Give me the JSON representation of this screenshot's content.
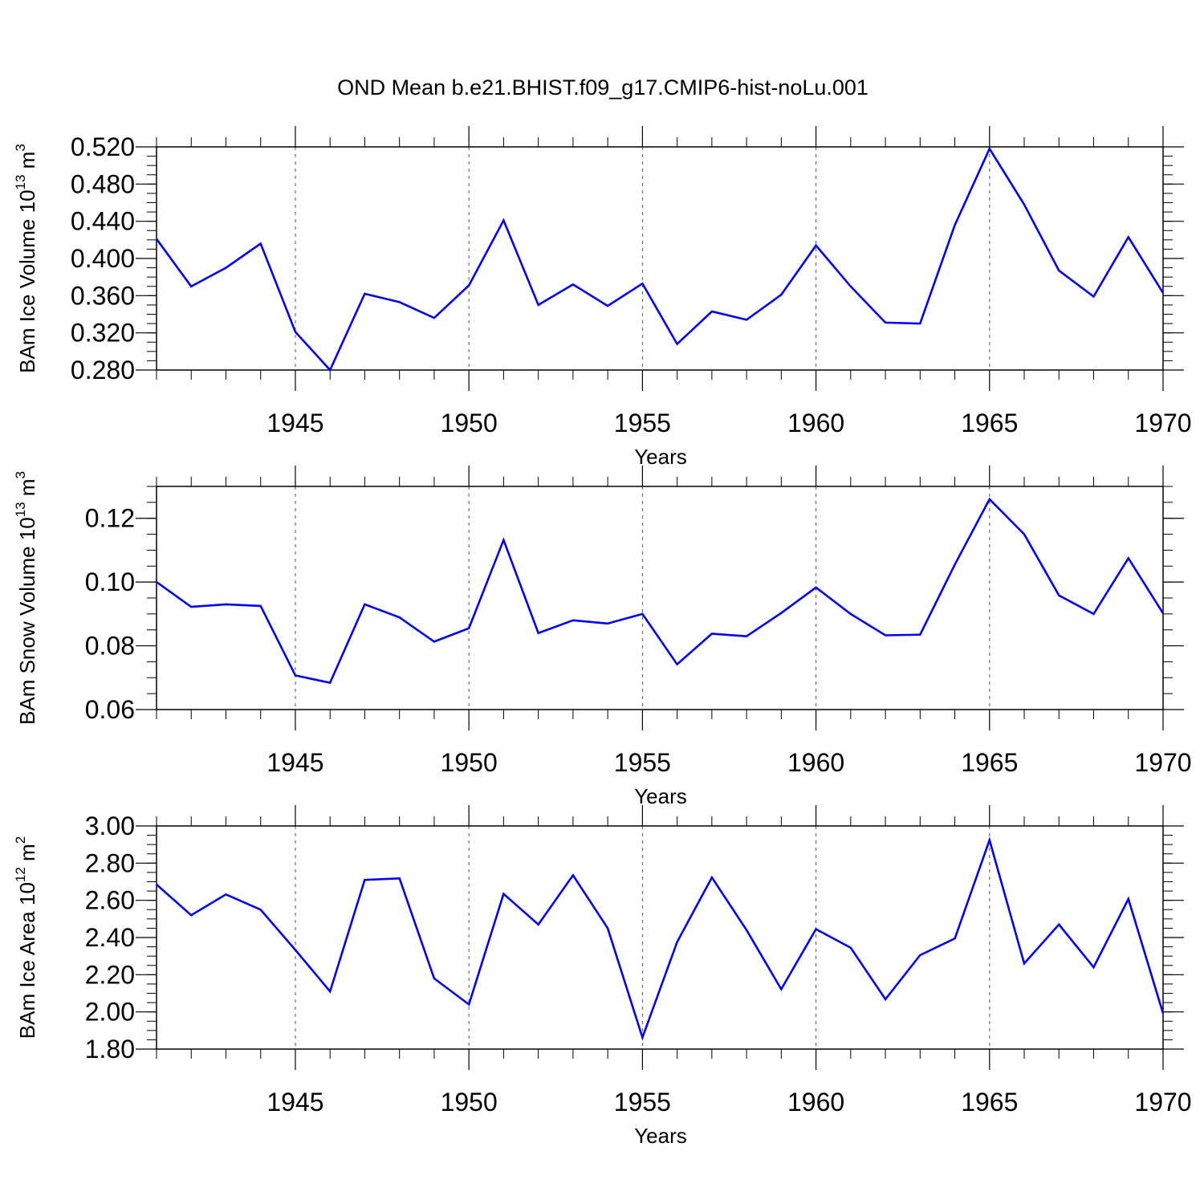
{
  "title": "OND Mean b.e21.BHIST.f09_g17.CMIP6-hist-noLu.001",
  "colors": {
    "line": "#0000ff",
    "axis": "#000000",
    "grid": "#555555"
  },
  "chart_data": [
    {
      "type": "line",
      "ylabel_main": "BAm Ice Volume 10",
      "ylabel_exp": "13",
      "ylabel_unit": " m",
      "ylabel_unit_exp": "3",
      "xlabel": "Years",
      "xlim": [
        1941,
        1970
      ],
      "ylim": [
        0.28,
        0.52
      ],
      "y_ticks": [
        0.28,
        0.32,
        0.36,
        0.4,
        0.44,
        0.48,
        0.52
      ],
      "y_tick_labels": [
        "0.280",
        "0.320",
        "0.360",
        "0.400",
        "0.440",
        "0.480",
        "0.520"
      ],
      "x_ticks": [
        1945,
        1950,
        1955,
        1960,
        1965,
        1970
      ],
      "x_tick_labels": [
        "1945",
        "1950",
        "1955",
        "1960",
        "1965",
        "1970"
      ],
      "grid": "vertical-dashed",
      "series": [
        {
          "name": "BAm Ice Volume",
          "x": [
            1941,
            1942,
            1943,
            1944,
            1945,
            1946,
            1947,
            1948,
            1949,
            1950,
            1951,
            1952,
            1953,
            1954,
            1955,
            1956,
            1957,
            1958,
            1959,
            1960,
            1961,
            1962,
            1963,
            1964,
            1965,
            1966,
            1967,
            1968,
            1969,
            1970
          ],
          "values": [
            0.421,
            0.37,
            0.39,
            0.416,
            0.321,
            0.28,
            0.362,
            0.353,
            0.336,
            0.371,
            0.441,
            0.35,
            0.372,
            0.349,
            0.373,
            0.308,
            0.343,
            0.334,
            0.361,
            0.414,
            0.37,
            0.331,
            0.33,
            0.436,
            0.518,
            0.458,
            0.387,
            0.359,
            0.423,
            0.363
          ]
        }
      ]
    },
    {
      "type": "line",
      "ylabel_main": "BAm Snow Volume 10",
      "ylabel_exp": "13",
      "ylabel_unit": " m",
      "ylabel_unit_exp": "3",
      "xlabel": "Years",
      "xlim": [
        1941,
        1970
      ],
      "ylim": [
        0.06,
        0.13
      ],
      "y_ticks": [
        0.06,
        0.08,
        0.1,
        0.12
      ],
      "y_tick_labels": [
        "0.06",
        "0.08",
        "0.10",
        "0.12"
      ],
      "x_ticks": [
        1945,
        1950,
        1955,
        1960,
        1965,
        1970
      ],
      "x_tick_labels": [
        "1945",
        "1950",
        "1955",
        "1960",
        "1965",
        "1970"
      ],
      "grid": "vertical-dashed",
      "series": [
        {
          "name": "BAm Snow Volume",
          "x": [
            1941,
            1942,
            1943,
            1944,
            1945,
            1946,
            1947,
            1948,
            1949,
            1950,
            1951,
            1952,
            1953,
            1954,
            1955,
            1956,
            1957,
            1958,
            1959,
            1960,
            1961,
            1962,
            1963,
            1964,
            1965,
            1966,
            1967,
            1968,
            1969,
            1970
          ],
          "values": [
            0.1,
            0.0922,
            0.093,
            0.0925,
            0.0707,
            0.0684,
            0.093,
            0.0889,
            0.0813,
            0.0855,
            0.1132,
            0.084,
            0.088,
            0.087,
            0.09,
            0.0742,
            0.0838,
            0.083,
            0.0903,
            0.0983,
            0.09,
            0.0833,
            0.0835,
            0.1055,
            0.126,
            0.115,
            0.0958,
            0.09,
            0.1075,
            0.0902
          ]
        }
      ]
    },
    {
      "type": "line",
      "ylabel_main": "BAm Ice Area 10",
      "ylabel_exp": "12",
      "ylabel_unit": " m",
      "ylabel_unit_exp": "2",
      "xlabel": "Years",
      "xlim": [
        1941,
        1970
      ],
      "ylim": [
        1.8,
        3.0
      ],
      "y_ticks": [
        1.8,
        2.0,
        2.2,
        2.4,
        2.6,
        2.8,
        3.0
      ],
      "y_tick_labels": [
        "1.80",
        "2.00",
        "2.20",
        "2.40",
        "2.60",
        "2.80",
        "3.00"
      ],
      "x_ticks": [
        1945,
        1950,
        1955,
        1960,
        1965,
        1970
      ],
      "x_tick_labels": [
        "1945",
        "1950",
        "1955",
        "1960",
        "1965",
        "1970"
      ],
      "grid": "vertical-dashed",
      "series": [
        {
          "name": "BAm Ice Area",
          "x": [
            1941,
            1942,
            1943,
            1944,
            1945,
            1946,
            1947,
            1948,
            1949,
            1950,
            1951,
            1952,
            1953,
            1954,
            1955,
            1956,
            1957,
            1958,
            1959,
            1960,
            1961,
            1962,
            1963,
            1964,
            1965,
            1966,
            1967,
            1968,
            1969,
            1970
          ],
          "values": [
            2.685,
            2.52,
            2.632,
            2.55,
            2.333,
            2.11,
            2.71,
            2.718,
            2.18,
            2.04,
            2.635,
            2.47,
            2.735,
            2.45,
            1.862,
            2.376,
            2.723,
            2.44,
            2.122,
            2.445,
            2.345,
            2.068,
            2.305,
            2.395,
            2.924,
            2.26,
            2.47,
            2.24,
            2.607,
            1.992
          ]
        }
      ]
    }
  ]
}
